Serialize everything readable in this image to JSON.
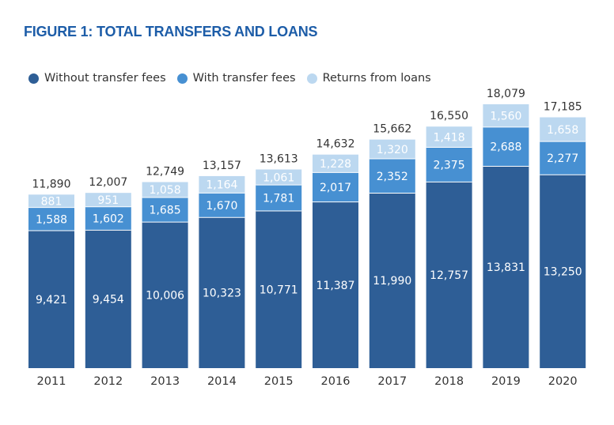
{
  "title": "FIGURE 1: TOTAL TRANSFERS AND LOANS",
  "colors": {
    "title": "#1d5da8",
    "without": "#2e5e96",
    "with": "#4790d2",
    "returns": "#bcd8f0",
    "axis_text": "#333333",
    "total_text": "#333333"
  },
  "chart_data": {
    "type": "bar",
    "stacked": true,
    "title": "FIGURE 1: TOTAL TRANSFERS AND LOANS",
    "xlabel": "",
    "ylabel": "",
    "legend_position": "top-left",
    "grid": false,
    "categories": [
      "2011",
      "2012",
      "2013",
      "2014",
      "2015",
      "2016",
      "2017",
      "2018",
      "2019",
      "2020"
    ],
    "series": [
      {
        "name": "Without transfer fees",
        "color": "without",
        "values": [
          9421,
          9454,
          10006,
          10323,
          10771,
          11387,
          11990,
          12757,
          13831,
          13250
        ]
      },
      {
        "name": "With transfer fees",
        "color": "with",
        "values": [
          1588,
          1602,
          1685,
          1670,
          1781,
          2017,
          2352,
          2375,
          2688,
          2277
        ]
      },
      {
        "name": "Returns from loans",
        "color": "returns",
        "values": [
          881,
          951,
          1058,
          1164,
          1061,
          1228,
          1320,
          1418,
          1560,
          1658
        ]
      }
    ],
    "totals": [
      11890,
      12007,
      12749,
      13157,
      13613,
      14632,
      15662,
      16550,
      18079,
      17185
    ]
  }
}
